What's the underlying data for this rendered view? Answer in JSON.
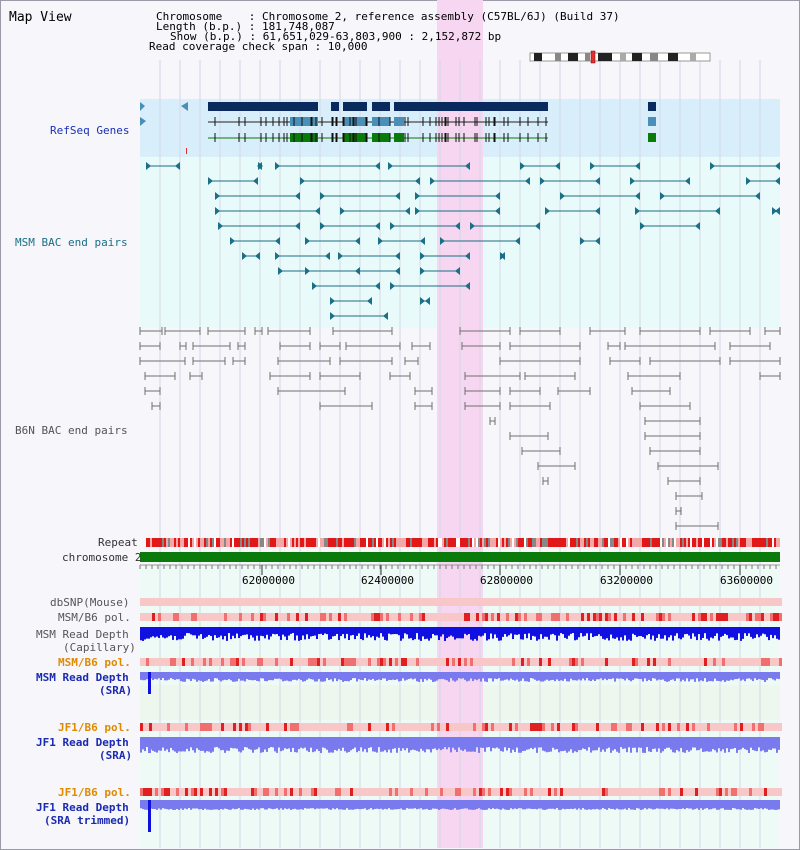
{
  "header": {
    "title": "Map View",
    "info_lines": [
      "Chromosome    : Chromosome 2, reference assembly (C57BL/6J) (Build 37)",
      "Length (b.p.) : 181,748,087",
      "Show (b.p.) : 61,651,029-63,803,900 : 2,152,872 bp",
      "Read coverage check span : 10,000"
    ]
  },
  "tracks": {
    "refseq": "RefSeq Genes",
    "msm_bac": "MSM BAC end pairs",
    "b6n_bac": "B6N BAC end pairs",
    "repeat": "Repeat",
    "chromosome": "chromosome 2",
    "dbsnp": "dbSNP(Mouse)",
    "msm_b6_pol_1": "MSM/B6 pol.",
    "msm_read_depth_cap_1": "MSM Read Depth",
    "msm_read_depth_cap_2": "(Capillary)",
    "msm_b6_pol_2": "MSM/B6 pol.",
    "msm_read_depth_sra_1": "MSM Read Depth",
    "msm_read_depth_sra_2": "(SRA)",
    "jf1_b6_pol_1": "JF1/B6 pol.",
    "jf1_read_depth_1": "JF1 Read Depth",
    "jf1_read_depth_2": "(SRA)",
    "jf1_b6_pol_2": "JF1/B6 pol.",
    "jf1_read_depth_trim_1": "JF1 Read Depth",
    "jf1_read_depth_trim_2": "(SRA trimmed)"
  },
  "axis": {
    "ticks": [
      "62000000",
      "62400000",
      "62800000",
      "63200000",
      "63600000"
    ]
  },
  "colors": {
    "highlight": "#f6d6f0",
    "refseq_bg": "#d8eefa",
    "msm_bg": "#e8fafa",
    "gene_dark": "#0a2a5e",
    "gene_mid": "#4a8fb8",
    "gene_green": "#0a7a0a",
    "msm_pair": "#1b6f86",
    "b6n_pair": "#707070",
    "chrom": "#0a7a0a",
    "depth": "#1010e0",
    "depth_light": "#7a7aef"
  }
}
